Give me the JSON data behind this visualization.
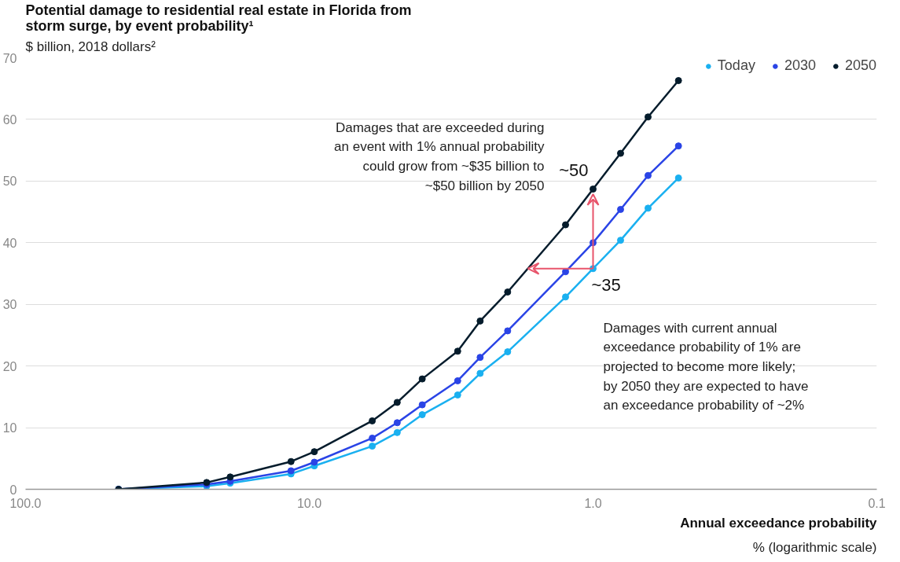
{
  "chart_data": {
    "type": "line",
    "title": "Potential damage to residential real estate in Florida from\nstorm surge, by event probability¹",
    "subtitle": "$ billion, 2018 dollars²",
    "xlabel": "Annual exceedance probability",
    "x": [
      47,
      23,
      19,
      11.6,
      9.6,
      6,
      4.9,
      4,
      3,
      2.5,
      2,
      1.25,
      1,
      0.8,
      0.64,
      0.5
    ],
    "series": [
      {
        "name": "Today",
        "color": "#1ab0f0",
        "values": [
          0,
          0.5,
          1,
          2.5,
          3.8,
          7,
          9.2,
          12.1,
          15.3,
          18.8,
          22.3,
          31.2,
          35.8,
          40.4,
          45.6,
          50.5
        ]
      },
      {
        "name": "2030",
        "color": "#2a44e6",
        "values": [
          0,
          0.8,
          1.3,
          3,
          4.4,
          8.3,
          10.8,
          13.7,
          17.6,
          21.4,
          25.7,
          35.3,
          40,
          45.4,
          50.9,
          55.7
        ]
      },
      {
        "name": "2050",
        "color": "#051c2c",
        "values": [
          0,
          1.1,
          2,
          4.5,
          6.1,
          11.1,
          14.1,
          17.9,
          22.4,
          27.3,
          32,
          42.9,
          48.7,
          54.5,
          60.4,
          66.3
        ]
      }
    ],
    "log": "x",
    "xlim": [
      100,
      0.1
    ],
    "xticks": [
      {
        "value": 100,
        "label": "100.0"
      },
      {
        "value": 10,
        "label": "10.0"
      },
      {
        "value": 1,
        "label": "1.0"
      },
      0.1
    ],
    "ylim": [
      0,
      70
    ],
    "yticks": [
      0,
      10,
      20,
      30,
      40,
      50,
      60,
      70
    ],
    "grid": "y",
    "legend": "top right",
    "marker": "circle",
    "line_style": "solid",
    "annotations": [
      {
        "text": "~50",
        "x": 1,
        "y": 48.7
      },
      {
        "text": "~35",
        "x": 1,
        "y": 35.8
      },
      "Damages that are exceeded during\nan event with 1% annual probability\ncould grow from ~$35 billion to\n~$50 billion by 2050",
      "Damages with current annual\nexceedance probability of 1% are\nprojected to become more likely;\nby 2050 they are expected to have\nan exceedance probability of ~2%",
      "% (logarithmic scale)"
    ]
  }
}
